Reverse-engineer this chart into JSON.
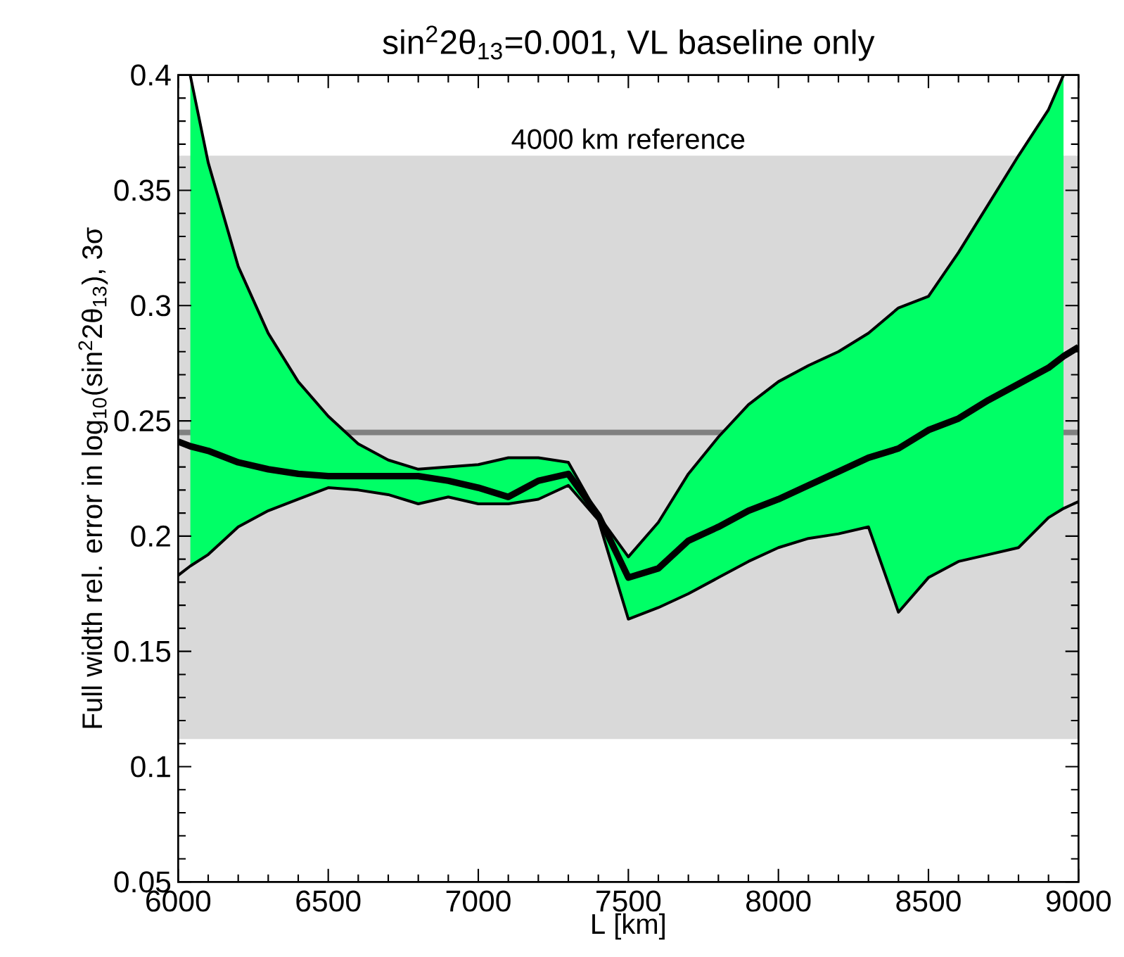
{
  "chart_data": {
    "type": "line",
    "title": "sin$^{2}$2θ$_{13}$=0.001, VL baseline only",
    "xlabel": "L [km]",
    "ylabel": "Full width rel. error in log$_{10}$(sin$^{2}$2θ$_{13}$), 3σ",
    "x": [
      6000,
      6040,
      6100,
      6200,
      6300,
      6400,
      6500,
      6600,
      6700,
      6800,
      6900,
      7000,
      7100,
      7200,
      7300,
      7400,
      7500,
      7600,
      7700,
      7800,
      7900,
      8000,
      8100,
      8200,
      8300,
      8400,
      8500,
      8600,
      8700,
      8800,
      8900,
      8950,
      9000
    ],
    "series": [
      {
        "color": "#000000",
        "values": [
          0.241,
          0.239,
          0.237,
          0.232,
          0.229,
          0.227,
          0.226,
          0.226,
          0.226,
          0.226,
          0.224,
          0.221,
          0.217,
          0.224,
          0.227,
          0.209,
          0.182,
          0.186,
          0.198,
          0.204,
          0.211,
          0.216,
          0.222,
          0.228,
          0.234,
          0.238,
          0.246,
          0.251,
          0.259,
          0.266,
          0.273,
          0.278,
          0.282
        ],
        "lower": [
          null,
          0.187,
          0.192,
          0.204,
          0.211,
          0.216,
          0.221,
          0.22,
          0.218,
          0.214,
          0.217,
          0.214,
          0.214,
          0.216,
          0.222,
          0.207,
          0.164,
          0.169,
          0.175,
          0.182,
          0.189,
          0.195,
          0.199,
          0.201,
          0.204,
          0.167,
          0.182,
          0.189,
          0.192,
          0.195,
          0.208,
          0.212,
          null
        ],
        "upper": [
          null,
          0.4,
          0.362,
          0.317,
          0.288,
          0.267,
          0.252,
          0.24,
          0.233,
          0.229,
          0.23,
          0.231,
          0.234,
          0.234,
          0.232,
          0.209,
          0.191,
          0.206,
          0.227,
          0.243,
          0.257,
          0.267,
          0.274,
          0.28,
          0.288,
          0.299,
          0.304,
          0.323,
          0.344,
          0.365,
          0.385,
          0.4,
          null
        ]
      },
      {
        "color": "#000000",
        "values": [
          null,
          0.4,
          0.362,
          0.317,
          0.288,
          0.267,
          0.252,
          0.24,
          0.233,
          0.229,
          0.23,
          0.231,
          0.234,
          0.234,
          0.232,
          0.209,
          0.191,
          0.206,
          0.227,
          0.243,
          0.257,
          0.267,
          0.274,
          0.28,
          0.288,
          0.299,
          0.304,
          0.323,
          0.344,
          0.365,
          0.385,
          0.4,
          null
        ]
      },
      {
        "color": "#000000",
        "values": [
          0.183,
          0.187,
          0.192,
          0.204,
          0.211,
          0.216,
          0.221,
          0.22,
          0.218,
          0.214,
          0.217,
          0.214,
          0.214,
          0.216,
          0.222,
          0.207,
          0.164,
          0.169,
          0.175,
          0.182,
          0.189,
          0.195,
          0.199,
          0.201,
          0.204,
          0.167,
          0.182,
          0.189,
          0.192,
          0.195,
          0.208,
          0.212,
          0.215
        ]
      }
    ],
    "xlim": [
      6000,
      9000
    ],
    "ylim": [
      0.05,
      0.4
    ],
    "xticks": [
      6000,
      6500,
      7000,
      7500,
      8000,
      8500,
      9000
    ],
    "yticks": [
      0.05,
      0.1,
      0.15,
      0.2,
      0.25,
      0.3,
      0.35,
      0.4
    ],
    "bands": [
      {
        "axis": "y",
        "from": 0.112,
        "to": 0.365,
        "label": "4000 km reference",
        "color": "#d9d9d9"
      }
    ],
    "ref_lines": [
      {
        "axis": "y",
        "value": 0.245,
        "color": "#808080"
      }
    ],
    "grid": false
  }
}
